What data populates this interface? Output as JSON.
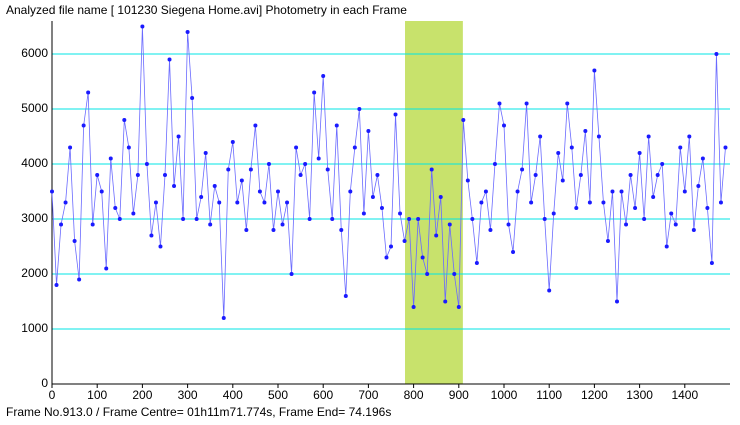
{
  "chart_data": {
    "type": "line",
    "title": "Analyzed file name [ 101230 Siegena Home.avi]   Photometry in each Frame",
    "footer": "Frame No.913.0 / Frame Centre= 01h11m71.774s,  Frame End= 74.196s",
    "xlim": [
      0,
      1500
    ],
    "ylim": [
      0,
      6600
    ],
    "xticks": [
      0,
      100,
      200,
      300,
      400,
      500,
      600,
      700,
      800,
      900,
      1000,
      1100,
      1200,
      1300,
      1400
    ],
    "yticks": [
      0,
      1000,
      2000,
      3000,
      4000,
      5000,
      6000
    ],
    "grid": true,
    "grid_color": "#00e5e5",
    "highlight": [
      781,
      909
    ],
    "highlight_color": "#c8e26c",
    "x": [
      0,
      10,
      20,
      30,
      40,
      50,
      60,
      70,
      80,
      90,
      100,
      110,
      120,
      130,
      140,
      150,
      160,
      170,
      180,
      190,
      200,
      210,
      220,
      230,
      240,
      250,
      260,
      270,
      280,
      290,
      300,
      310,
      320,
      330,
      340,
      350,
      360,
      370,
      380,
      390,
      400,
      410,
      420,
      430,
      440,
      450,
      460,
      470,
      480,
      490,
      500,
      510,
      520,
      530,
      540,
      550,
      560,
      570,
      580,
      590,
      600,
      610,
      620,
      630,
      640,
      650,
      660,
      670,
      680,
      690,
      700,
      710,
      720,
      730,
      740,
      750,
      760,
      770,
      780,
      790,
      800,
      810,
      820,
      830,
      840,
      850,
      860,
      870,
      880,
      890,
      900,
      910,
      920,
      930,
      940,
      950,
      960,
      970,
      980,
      990,
      1000,
      1010,
      1020,
      1030,
      1040,
      1050,
      1060,
      1070,
      1080,
      1090,
      1100,
      1110,
      1120,
      1130,
      1140,
      1150,
      1160,
      1170,
      1180,
      1190,
      1200,
      1210,
      1220,
      1230,
      1240,
      1250,
      1260,
      1270,
      1280,
      1290,
      1300,
      1310,
      1320,
      1330,
      1340,
      1350,
      1360,
      1370,
      1380,
      1390,
      1400,
      1410,
      1420,
      1430,
      1440,
      1450,
      1460,
      1470,
      1480,
      1490
    ],
    "series": [
      {
        "color": "#1a1aff",
        "values": [
          3500,
          1800,
          2900,
          3300,
          4300,
          2600,
          1900,
          4700,
          5300,
          2900,
          3800,
          3500,
          2100,
          4100,
          3200,
          3000,
          4800,
          4300,
          3100,
          3800,
          6500,
          4000,
          2700,
          3300,
          2500,
          3800,
          5900,
          3600,
          4500,
          3000,
          6400,
          5200,
          3000,
          3400,
          4200,
          2900,
          3600,
          3300,
          1200,
          3900,
          4400,
          3300,
          3700,
          2800,
          3900,
          4700,
          3500,
          3300,
          4000,
          2800,
          3500,
          2900,
          3300,
          2000,
          4300,
          3800,
          4000,
          3000,
          5300,
          4100,
          5600,
          3900,
          3000,
          4700,
          2800,
          1600,
          3500,
          4300,
          5000,
          3100,
          4600,
          3400,
          3800,
          3200,
          2300,
          2500,
          4900,
          3100,
          2600,
          3000,
          1400,
          3000,
          2300,
          2000,
          3900,
          2700,
          3400,
          1500,
          2900,
          2000,
          1400,
          4800,
          3700,
          3000,
          2200,
          3300,
          3500,
          2800,
          4000,
          5100,
          4700,
          2900,
          2400,
          3500,
          3900,
          5100,
          3300,
          3800,
          4500,
          3000,
          1700,
          3100,
          4200,
          3700,
          5100,
          4300,
          3200,
          3800,
          4600,
          3300,
          5700,
          4500,
          3300,
          2600,
          3500,
          1500,
          3500,
          2900,
          3800,
          3200,
          4200,
          3000,
          4500,
          3400,
          3800,
          4000,
          2500,
          3100,
          2900,
          4300,
          3500,
          4500,
          2800,
          3600,
          4100,
          3200,
          2200,
          6000,
          3300,
          4300
        ]
      }
    ]
  }
}
